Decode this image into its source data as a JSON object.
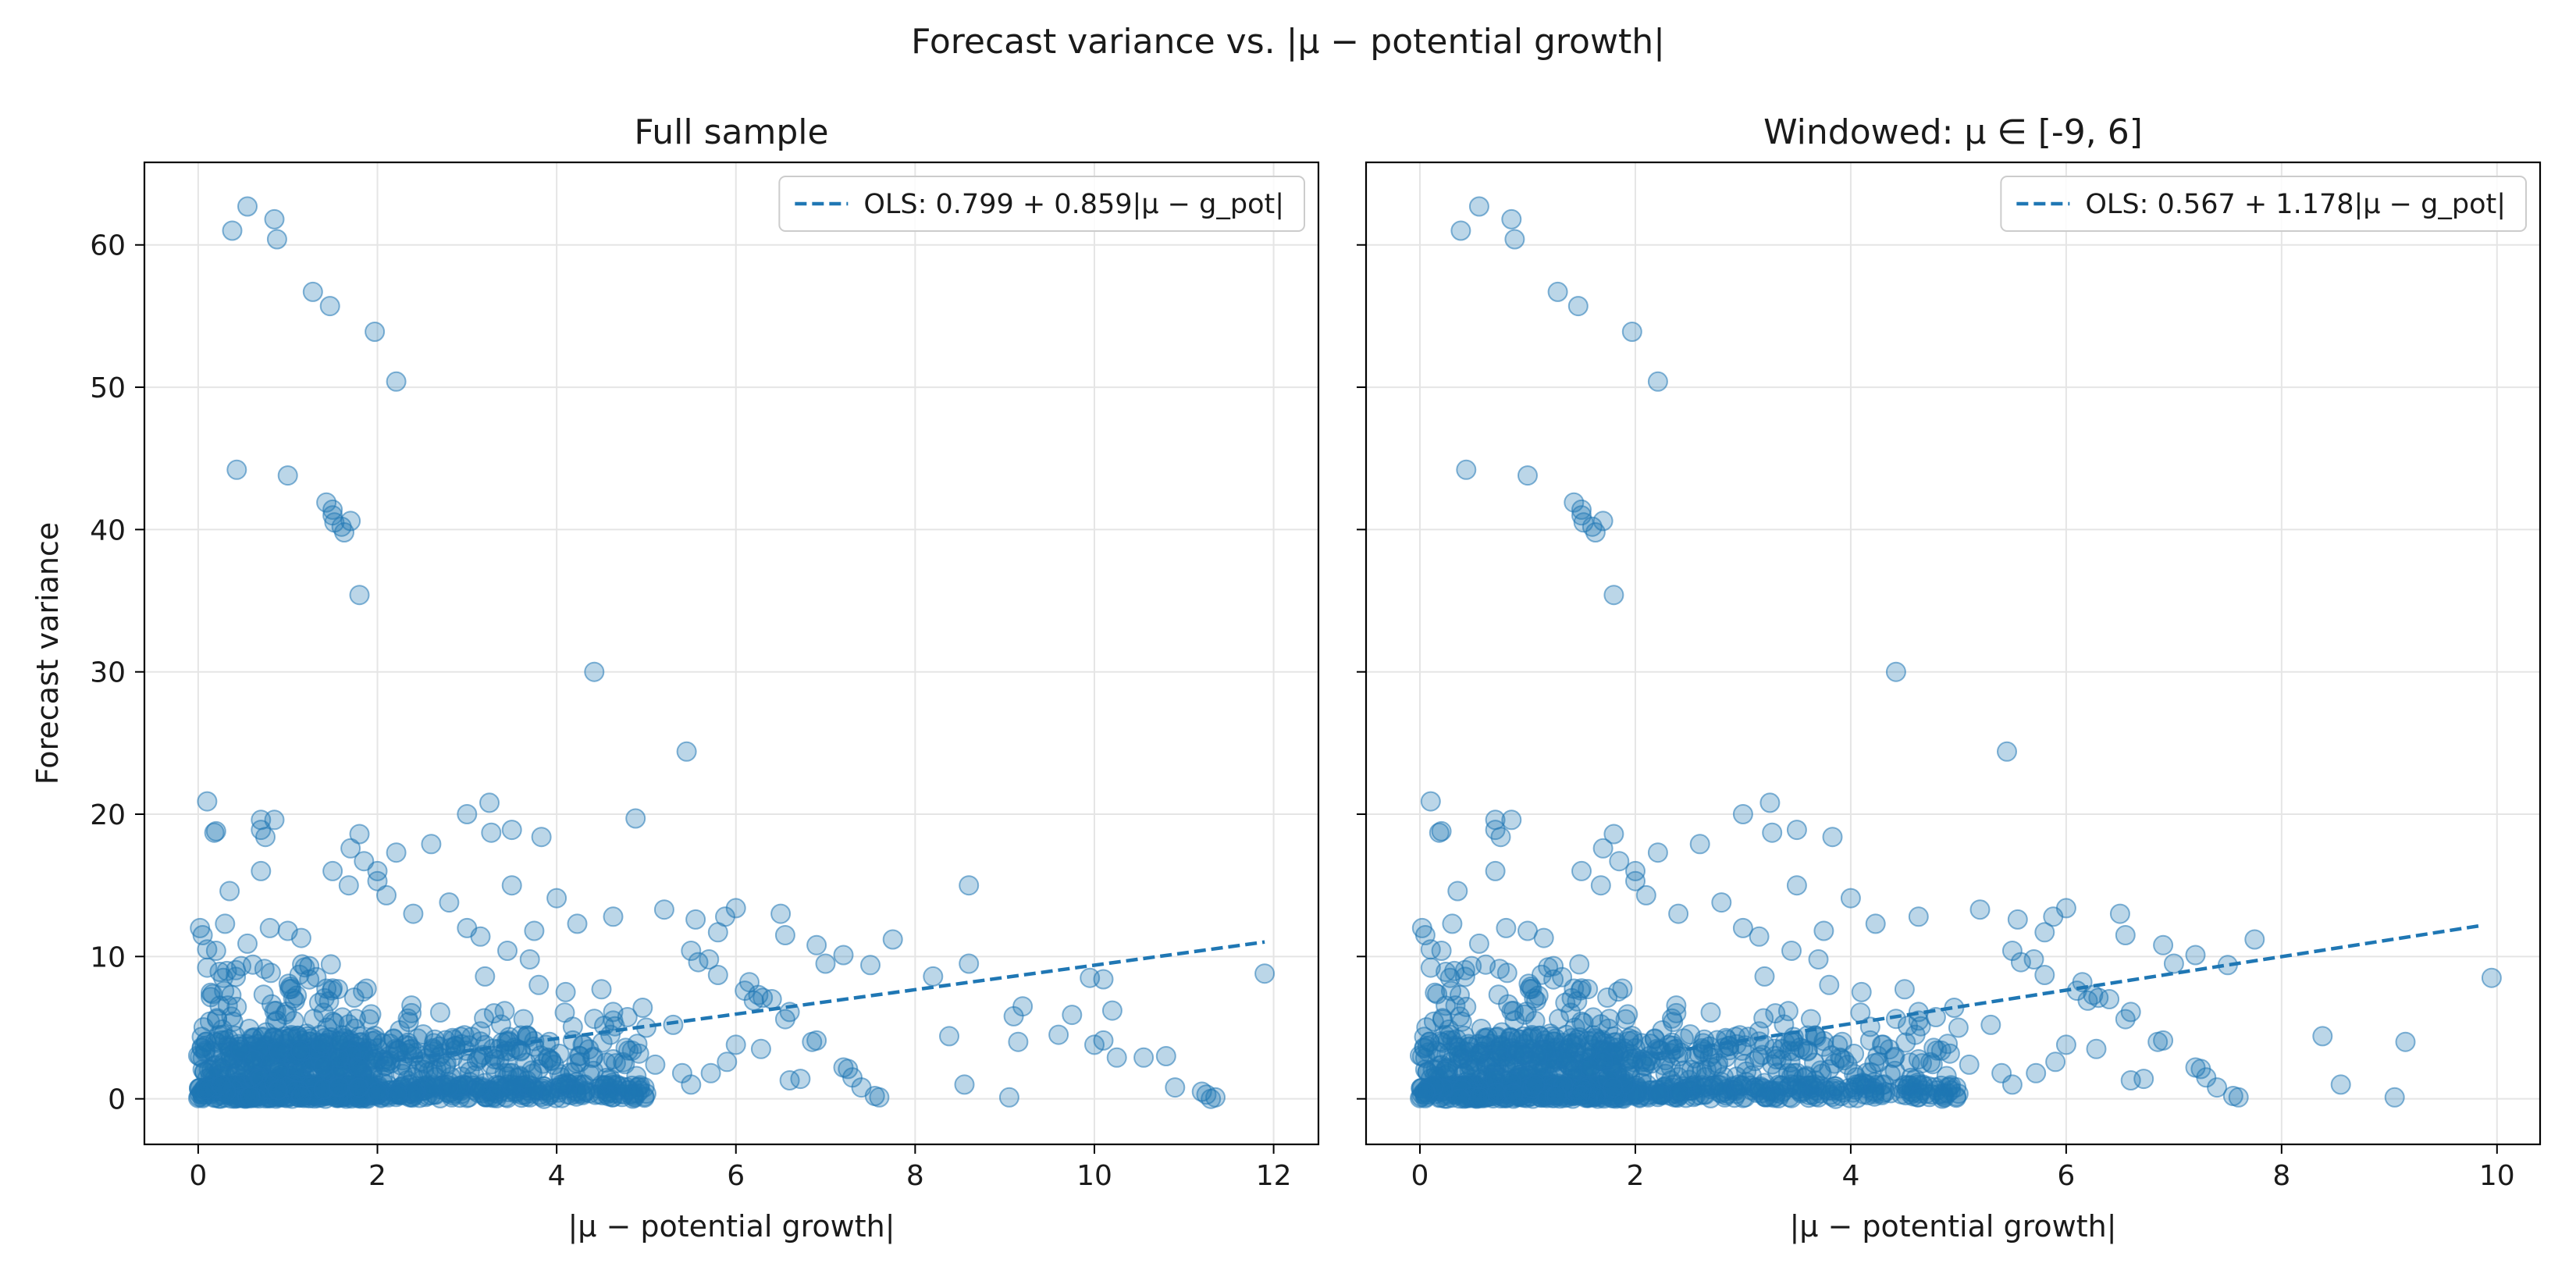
{
  "chart_data": {
    "suptitle": "Forecast variance vs. |μ − potential growth|",
    "colors": {
      "points": "#1f77b4",
      "fit": "#1f77b4",
      "grid": "#e5e5e5"
    },
    "panels": [
      {
        "type": "scatter",
        "title": "Full sample",
        "xlabel": "|μ − potential growth|",
        "ylabel": "Forecast variance",
        "xlim": [
          -0.6,
          12.5
        ],
        "ylim": [
          -3.2,
          65.8
        ],
        "xticks": [
          0,
          2,
          4,
          6,
          8,
          10,
          12
        ],
        "yticks": [
          0,
          10,
          20,
          30,
          40,
          50,
          60
        ],
        "fit": {
          "label": "OLS: 0.799 + 0.859|μ − g_pot|",
          "intercept": 0.799,
          "slope": 0.859,
          "x_range": [
            2.0,
            11.9
          ]
        },
        "points": [
          [
            0.55,
            62.7
          ],
          [
            0.85,
            61.8
          ],
          [
            0.38,
            61.0
          ],
          [
            0.88,
            60.4
          ],
          [
            1.28,
            56.7
          ],
          [
            1.47,
            55.7
          ],
          [
            1.97,
            53.9
          ],
          [
            2.21,
            50.4
          ],
          [
            0.43,
            44.2
          ],
          [
            1.0,
            43.8
          ],
          [
            1.43,
            41.9
          ],
          [
            1.5,
            41.4
          ],
          [
            1.5,
            41.0
          ],
          [
            1.52,
            40.5
          ],
          [
            1.6,
            40.2
          ],
          [
            1.7,
            40.6
          ],
          [
            1.63,
            39.8
          ],
          [
            1.8,
            35.4
          ],
          [
            4.42,
            30.0
          ],
          [
            5.45,
            24.4
          ],
          [
            0.1,
            20.9
          ],
          [
            0.18,
            18.7
          ],
          [
            0.2,
            18.8
          ],
          [
            0.7,
            19.6
          ],
          [
            0.85,
            19.6
          ],
          [
            0.7,
            18.9
          ],
          [
            0.75,
            18.4
          ],
          [
            0.7,
            16.0
          ],
          [
            1.8,
            18.6
          ],
          [
            2.21,
            17.3
          ],
          [
            1.7,
            17.6
          ],
          [
            2.0,
            16.0
          ],
          [
            3.0,
            20.0
          ],
          [
            3.25,
            20.8
          ],
          [
            3.5,
            18.9
          ],
          [
            3.27,
            18.7
          ],
          [
            3.83,
            18.4
          ],
          [
            4.88,
            19.7
          ],
          [
            8.6,
            15.0
          ],
          [
            0.02,
            12.0
          ],
          [
            0.05,
            11.5
          ],
          [
            0.1,
            10.5
          ],
          [
            0.2,
            10.4
          ],
          [
            0.35,
            14.6
          ],
          [
            0.3,
            12.3
          ],
          [
            0.55,
            10.9
          ],
          [
            0.8,
            12.0
          ],
          [
            1.0,
            11.8
          ],
          [
            1.15,
            11.3
          ],
          [
            1.5,
            16.0
          ],
          [
            1.68,
            15.0
          ],
          [
            1.85,
            16.7
          ],
          [
            2.0,
            15.3
          ],
          [
            2.1,
            14.3
          ],
          [
            2.4,
            13.0
          ],
          [
            2.6,
            17.9
          ],
          [
            2.8,
            13.8
          ],
          [
            3.0,
            12.0
          ],
          [
            3.15,
            11.4
          ],
          [
            3.5,
            15.0
          ],
          [
            3.75,
            11.8
          ],
          [
            4.0,
            14.1
          ],
          [
            4.23,
            12.3
          ],
          [
            4.63,
            12.8
          ],
          [
            5.2,
            13.3
          ],
          [
            5.55,
            12.6
          ],
          [
            5.88,
            12.8
          ],
          [
            6.0,
            13.4
          ],
          [
            6.5,
            13.0
          ],
          [
            6.55,
            11.5
          ],
          [
            6.9,
            10.8
          ],
          [
            7.0,
            9.5
          ],
          [
            7.2,
            10.1
          ],
          [
            7.5,
            9.4
          ],
          [
            7.75,
            11.2
          ],
          [
            8.6,
            9.5
          ],
          [
            8.2,
            8.6
          ],
          [
            9.95,
            8.5
          ],
          [
            10.1,
            8.4
          ],
          [
            11.9,
            8.8
          ],
          [
            10.2,
            6.2
          ],
          [
            9.2,
            6.5
          ],
          [
            9.1,
            5.8
          ],
          [
            9.75,
            5.9
          ],
          [
            8.38,
            4.4
          ],
          [
            9.15,
            4.0
          ],
          [
            9.6,
            4.5
          ],
          [
            10.1,
            4.1
          ],
          [
            10.0,
            3.8
          ],
          [
            10.25,
            2.9
          ],
          [
            10.55,
            2.9
          ],
          [
            10.8,
            3.0
          ],
          [
            10.9,
            0.8
          ],
          [
            11.2,
            0.5
          ],
          [
            11.3,
            0.0
          ],
          [
            11.35,
            0.1
          ],
          [
            11.25,
            0.3
          ],
          [
            9.05,
            0.1
          ],
          [
            8.55,
            1.0
          ],
          [
            7.6,
            0.1
          ],
          [
            7.55,
            0.2
          ],
          [
            7.4,
            0.8
          ],
          [
            7.3,
            1.5
          ],
          [
            7.25,
            2.1
          ],
          [
            7.2,
            2.2
          ],
          [
            6.9,
            4.1
          ],
          [
            6.85,
            4.0
          ],
          [
            6.72,
            1.4
          ],
          [
            6.6,
            1.3
          ],
          [
            6.28,
            3.5
          ],
          [
            6.2,
            6.9
          ],
          [
            6.25,
            7.3
          ],
          [
            6.3,
            7.1
          ],
          [
            6.4,
            7.0
          ],
          [
            6.15,
            8.2
          ],
          [
            6.1,
            7.6
          ],
          [
            6.6,
            6.1
          ],
          [
            6.55,
            5.6
          ],
          [
            5.8,
            8.7
          ],
          [
            5.7,
            9.8
          ],
          [
            5.5,
            10.4
          ],
          [
            5.58,
            9.6
          ],
          [
            5.8,
            11.7
          ],
          [
            6.0,
            3.8
          ],
          [
            5.72,
            1.8
          ],
          [
            5.5,
            1.0
          ],
          [
            5.9,
            2.6
          ],
          [
            5.3,
            5.2
          ],
          [
            5.0,
            5.0
          ],
          [
            4.63,
            6.1
          ],
          [
            4.63,
            5.5
          ],
          [
            4.6,
            4.5
          ],
          [
            4.5,
            7.7
          ],
          [
            4.3,
            3.8
          ],
          [
            4.18,
            4.1
          ],
          [
            4.05,
            1.0
          ],
          [
            3.92,
            4.0
          ],
          [
            4.6,
            1.4
          ],
          [
            4.9,
            0.4
          ],
          [
            5.1,
            2.4
          ],
          [
            5.4,
            1.8
          ],
          [
            4.8,
            3.4
          ],
          [
            4.1,
            7.5
          ],
          [
            3.8,
            8.0
          ],
          [
            3.7,
            9.8
          ],
          [
            3.45,
            10.4
          ],
          [
            3.2,
            8.6
          ],
          [
            3.6,
            3.4
          ],
          [
            3.5,
            1.0
          ]
        ],
        "cluster": {
          "seed": 12345,
          "count": 1300
        }
      },
      {
        "type": "scatter",
        "title": "Windowed: μ ∈ [-9, 6]",
        "xlabel": "|μ − potential growth|",
        "ylabel": "",
        "xlim": [
          -0.5,
          10.4
        ],
        "ylim": [
          -3.2,
          65.8
        ],
        "xticks": [
          0,
          2,
          4,
          6,
          8,
          10
        ],
        "yticks": [
          0,
          10,
          20,
          30,
          40,
          50,
          60
        ],
        "fit": {
          "label": "OLS: 0.567 + 1.178|μ − g_pot|",
          "intercept": 0.567,
          "slope": 1.178,
          "x_range": [
            2.0,
            9.85
          ]
        },
        "points": [
          [
            0.55,
            62.7
          ],
          [
            0.85,
            61.8
          ],
          [
            0.38,
            61.0
          ],
          [
            0.88,
            60.4
          ],
          [
            1.28,
            56.7
          ],
          [
            1.47,
            55.7
          ],
          [
            1.97,
            53.9
          ],
          [
            2.21,
            50.4
          ],
          [
            0.43,
            44.2
          ],
          [
            1.0,
            43.8
          ],
          [
            1.43,
            41.9
          ],
          [
            1.5,
            41.4
          ],
          [
            1.5,
            41.0
          ],
          [
            1.52,
            40.5
          ],
          [
            1.6,
            40.2
          ],
          [
            1.7,
            40.6
          ],
          [
            1.63,
            39.8
          ],
          [
            1.8,
            35.4
          ],
          [
            4.42,
            30.0
          ],
          [
            5.45,
            24.4
          ],
          [
            0.1,
            20.9
          ],
          [
            0.18,
            18.7
          ],
          [
            0.2,
            18.8
          ],
          [
            0.7,
            19.6
          ],
          [
            0.85,
            19.6
          ],
          [
            0.7,
            18.9
          ],
          [
            0.75,
            18.4
          ],
          [
            0.7,
            16.0
          ],
          [
            1.8,
            18.6
          ],
          [
            2.21,
            17.3
          ],
          [
            1.7,
            17.6
          ],
          [
            2.0,
            16.0
          ],
          [
            3.0,
            20.0
          ],
          [
            3.25,
            20.8
          ],
          [
            3.5,
            18.9
          ],
          [
            3.27,
            18.7
          ],
          [
            3.83,
            18.4
          ],
          [
            0.02,
            12.0
          ],
          [
            0.05,
            11.5
          ],
          [
            0.1,
            10.5
          ],
          [
            0.2,
            10.4
          ],
          [
            0.35,
            14.6
          ],
          [
            0.3,
            12.3
          ],
          [
            0.55,
            10.9
          ],
          [
            0.8,
            12.0
          ],
          [
            1.0,
            11.8
          ],
          [
            1.15,
            11.3
          ],
          [
            1.5,
            16.0
          ],
          [
            1.68,
            15.0
          ],
          [
            1.85,
            16.7
          ],
          [
            2.0,
            15.3
          ],
          [
            2.1,
            14.3
          ],
          [
            2.4,
            13.0
          ],
          [
            2.6,
            17.9
          ],
          [
            2.8,
            13.8
          ],
          [
            3.0,
            12.0
          ],
          [
            3.15,
            11.4
          ],
          [
            3.5,
            15.0
          ],
          [
            3.75,
            11.8
          ],
          [
            4.0,
            14.1
          ],
          [
            4.23,
            12.3
          ],
          [
            4.63,
            12.8
          ],
          [
            5.2,
            13.3
          ],
          [
            5.55,
            12.6
          ],
          [
            5.88,
            12.8
          ],
          [
            6.0,
            13.4
          ],
          [
            6.5,
            13.0
          ],
          [
            6.55,
            11.5
          ],
          [
            6.9,
            10.8
          ],
          [
            7.0,
            9.5
          ],
          [
            7.2,
            10.1
          ],
          [
            7.5,
            9.4
          ],
          [
            7.75,
            11.2
          ],
          [
            9.95,
            8.5
          ],
          [
            8.38,
            4.4
          ],
          [
            9.15,
            4.0
          ],
          [
            9.05,
            0.1
          ],
          [
            8.55,
            1.0
          ],
          [
            7.6,
            0.1
          ],
          [
            7.55,
            0.2
          ],
          [
            7.4,
            0.8
          ],
          [
            7.3,
            1.5
          ],
          [
            7.25,
            2.1
          ],
          [
            7.2,
            2.2
          ],
          [
            6.9,
            4.1
          ],
          [
            6.85,
            4.0
          ],
          [
            6.72,
            1.4
          ],
          [
            6.6,
            1.3
          ],
          [
            6.28,
            3.5
          ],
          [
            6.2,
            6.9
          ],
          [
            6.25,
            7.3
          ],
          [
            6.3,
            7.1
          ],
          [
            6.4,
            7.0
          ],
          [
            6.15,
            8.2
          ],
          [
            6.1,
            7.6
          ],
          [
            6.6,
            6.1
          ],
          [
            6.55,
            5.6
          ],
          [
            5.8,
            8.7
          ],
          [
            5.7,
            9.8
          ],
          [
            5.5,
            10.4
          ],
          [
            5.58,
            9.6
          ],
          [
            5.8,
            11.7
          ],
          [
            6.0,
            3.8
          ],
          [
            5.72,
            1.8
          ],
          [
            5.5,
            1.0
          ],
          [
            5.9,
            2.6
          ],
          [
            5.3,
            5.2
          ],
          [
            5.0,
            5.0
          ],
          [
            4.63,
            6.1
          ],
          [
            4.63,
            5.5
          ],
          [
            4.6,
            4.5
          ],
          [
            4.5,
            7.7
          ],
          [
            4.3,
            3.8
          ],
          [
            4.18,
            4.1
          ],
          [
            4.05,
            1.0
          ],
          [
            3.92,
            4.0
          ],
          [
            4.6,
            1.4
          ],
          [
            4.9,
            0.4
          ],
          [
            5.1,
            2.4
          ],
          [
            5.4,
            1.8
          ],
          [
            4.8,
            3.4
          ],
          [
            4.1,
            7.5
          ],
          [
            3.8,
            8.0
          ],
          [
            3.7,
            9.8
          ],
          [
            3.45,
            10.4
          ],
          [
            3.2,
            8.6
          ],
          [
            3.6,
            3.4
          ],
          [
            3.5,
            1.0
          ]
        ],
        "cluster": {
          "seed": 12345,
          "count": 1250
        }
      }
    ]
  }
}
